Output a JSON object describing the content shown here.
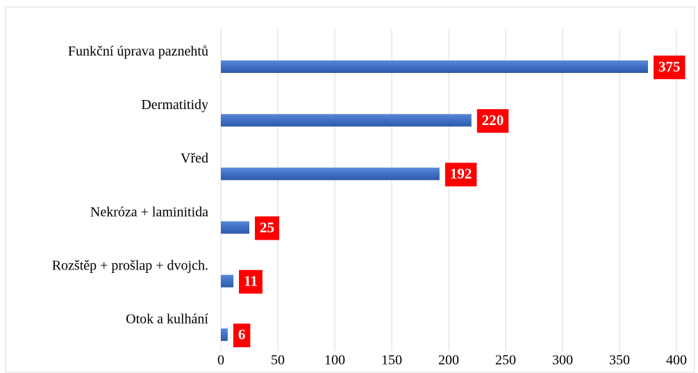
{
  "chart_data": {
    "type": "bar",
    "orientation": "horizontal",
    "categories": [
      "Funkční úprava paznehtů",
      "Dermatitidy",
      "Vřed",
      "Nekróza + laminitida",
      "Rozštěp + prošlap + dvojch.",
      "Otok a kulhání"
    ],
    "values": [
      375,
      220,
      192,
      25,
      11,
      6
    ],
    "color": "#4472c4",
    "label_color": "#ff0000",
    "xlim": [
      0,
      400
    ],
    "xticks": [
      0,
      50,
      100,
      150,
      200,
      250,
      300,
      350,
      400
    ],
    "grid": true
  }
}
